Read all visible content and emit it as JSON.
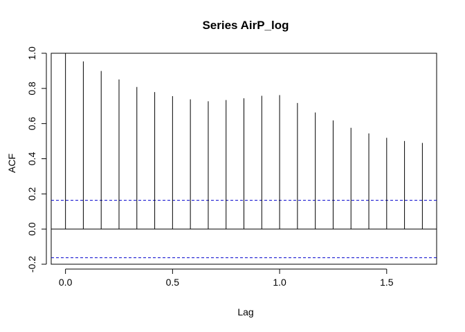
{
  "chart_data": {
    "type": "bar",
    "title": "Series  AirP_log",
    "xlabel": "Lag",
    "ylabel": "ACF",
    "xlim": [
      -0.0667,
      1.7333
    ],
    "ylim": [
      -0.2,
      1.0
    ],
    "x_ticks": [
      0.0,
      0.5,
      1.0,
      1.5
    ],
    "x_tick_labels": [
      "0.0",
      "0.5",
      "1.0",
      "1.5"
    ],
    "y_ticks": [
      -0.2,
      0.0,
      0.2,
      0.4,
      0.6,
      0.8,
      1.0
    ],
    "y_tick_labels": [
      "-0.2",
      "0.0",
      "0.2",
      "0.4",
      "0.6",
      "0.8",
      "1.0"
    ],
    "lags": [
      0.0,
      0.0833,
      0.1667,
      0.25,
      0.3333,
      0.4167,
      0.5,
      0.5833,
      0.6667,
      0.75,
      0.8333,
      0.9167,
      1.0,
      1.0833,
      1.1667,
      1.25,
      1.3333,
      1.4167,
      1.5,
      1.5833,
      1.6667
    ],
    "values": [
      1.0,
      0.954,
      0.899,
      0.851,
      0.808,
      0.779,
      0.756,
      0.738,
      0.727,
      0.734,
      0.744,
      0.758,
      0.762,
      0.717,
      0.663,
      0.618,
      0.576,
      0.544,
      0.519,
      0.501,
      0.49
    ],
    "confidence_bound": 0.1633,
    "zero_line": 0,
    "grid": false,
    "colors": {
      "bars": "#000000",
      "confidence_lines": "#0000cc",
      "axes": "#000000"
    }
  }
}
